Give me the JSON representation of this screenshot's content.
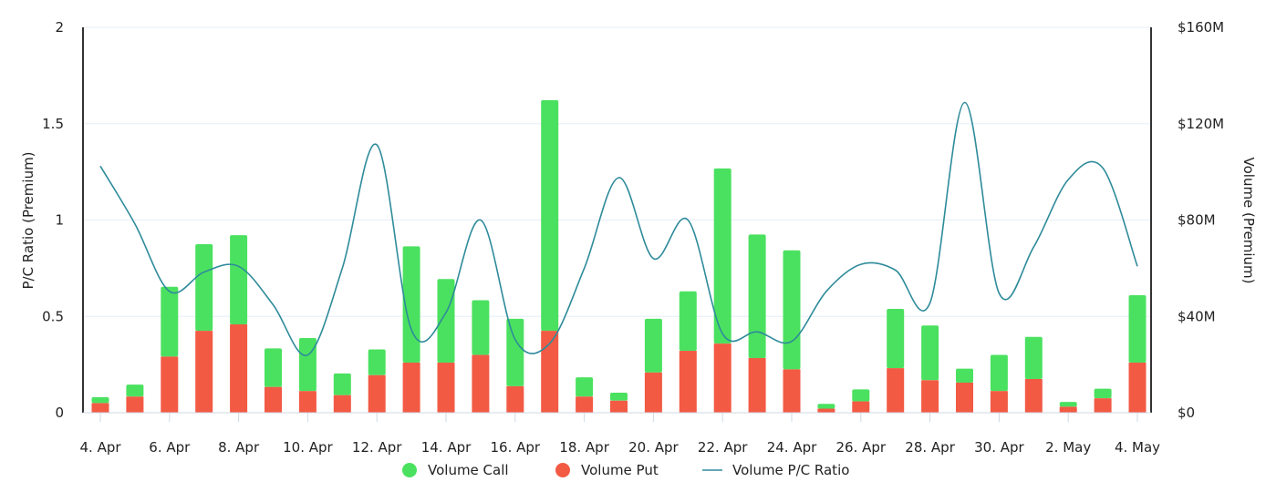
{
  "chart_data": {
    "type": "bar",
    "stacked": true,
    "x_tick_labels": [
      "4. Apr",
      "6. Apr",
      "8. Apr",
      "10. Apr",
      "12. Apr",
      "14. Apr",
      "16. Apr",
      "18. Apr",
      "20. Apr",
      "22. Apr",
      "24. Apr",
      "26. Apr",
      "28. Apr",
      "30. Apr",
      "2. May",
      "4. May"
    ],
    "categories": [
      "4. Apr",
      "5. Apr",
      "6. Apr",
      "7. Apr",
      "8. Apr",
      "9. Apr",
      "10. Apr",
      "11. Apr",
      "12. Apr",
      "13. Apr",
      "14. Apr",
      "15. Apr",
      "16. Apr",
      "17. Apr",
      "18. Apr",
      "19. Apr",
      "20. Apr",
      "21. Apr",
      "22. Apr",
      "23. Apr",
      "24. Apr",
      "25. Apr",
      "26. Apr",
      "27. Apr",
      "28. Apr",
      "29. Apr",
      "30. Apr",
      "1. May",
      "2. May",
      "3. May",
      "4. May"
    ],
    "series": [
      {
        "name": "Volume Call",
        "color": "#4be160",
        "axis": "right",
        "values": [
          2.5,
          5.0,
          29.0,
          36.0,
          37.0,
          16.0,
          22.0,
          9.0,
          10.7,
          48.3,
          34.7,
          22.7,
          28.0,
          95.8,
          8.0,
          3.3,
          22.3,
          24.7,
          72.7,
          51.3,
          49.4,
          2.0,
          5.0,
          24.6,
          22.7,
          5.8,
          15.0,
          17.5,
          2.0,
          4.0,
          28.0
        ]
      },
      {
        "name": "Volume Put",
        "color": "#f25a44",
        "axis": "right",
        "values": [
          4.0,
          6.7,
          23.3,
          34.0,
          36.7,
          10.7,
          9.0,
          7.3,
          15.6,
          20.8,
          20.8,
          24.0,
          11.0,
          34.0,
          6.7,
          5.0,
          16.7,
          25.7,
          28.7,
          22.7,
          18.0,
          1.7,
          4.7,
          18.5,
          13.5,
          12.5,
          9.0,
          14.0,
          2.5,
          6.0,
          20.8
        ]
      },
      {
        "name": "Volume P/C Ratio",
        "color": "#2e8b9a",
        "type": "line",
        "axis": "left",
        "values": [
          1.28,
          0.98,
          0.63,
          0.73,
          0.76,
          0.56,
          0.3,
          0.75,
          1.39,
          0.43,
          0.52,
          1.0,
          0.38,
          0.36,
          0.75,
          1.22,
          0.8,
          1.0,
          0.41,
          0.42,
          0.37,
          0.63,
          0.77,
          0.74,
          0.57,
          1.61,
          0.62,
          0.86,
          1.21,
          1.27,
          0.76
        ]
      }
    ],
    "y_left": {
      "label": "P/C Ratio (Premium)",
      "range": [
        0,
        2
      ],
      "ticks": [
        "0",
        "0.5",
        "1",
        "1.5",
        "2"
      ]
    },
    "y_right": {
      "label": "Volume (Premium)",
      "range": [
        0,
        160
      ],
      "unit": "M",
      "ticks": [
        "$0",
        "$40M",
        "$80M",
        "$120M",
        "$160M"
      ]
    },
    "grid": true,
    "legend_position": "bottom-center"
  },
  "legend": [
    {
      "label": "Volume Call",
      "color": "#4be160",
      "marker": "circle"
    },
    {
      "label": "Volume Put",
      "color": "#f25a44",
      "marker": "circle"
    },
    {
      "label": "Volume P/C Ratio",
      "color": "#2e8b9a",
      "marker": "line"
    }
  ]
}
